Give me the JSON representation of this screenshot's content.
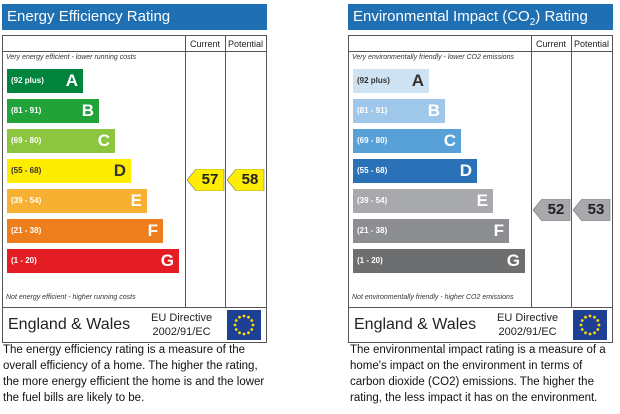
{
  "energy": {
    "title": "Energy Efficiency Rating",
    "col_current": "Current",
    "col_potential": "Potential",
    "top_note": "Very energy efficient - lower running costs",
    "bottom_note": "Not energy efficient - higher running costs",
    "bands": [
      {
        "range": "(92 plus)",
        "letter": "A",
        "color": "#00833c",
        "text": "#ffffff"
      },
      {
        "range": "(81 - 91)",
        "letter": "B",
        "color": "#22a33a",
        "text": "#ffffff"
      },
      {
        "range": "(69 - 80)",
        "letter": "C",
        "color": "#8cc63f",
        "text": "#ffffff"
      },
      {
        "range": "(55 - 68)",
        "letter": "D",
        "color": "#ffed00",
        "text": "#333333"
      },
      {
        "range": "(39 - 54)",
        "letter": "E",
        "color": "#f7b032",
        "text": "#ffffff"
      },
      {
        "range": "(21 - 38)",
        "letter": "F",
        "color": "#ee7d1c",
        "text": "#ffffff"
      },
      {
        "range": "(1 - 20)",
        "letter": "G",
        "color": "#e31d23",
        "text": "#ffffff"
      }
    ],
    "current": "57",
    "potential": "58",
    "arrow_color": "#ffed00",
    "region": "England & Wales",
    "directive_line1": "EU Directive",
    "directive_line2": "2002/91/EC",
    "description": "The energy efficiency rating is a measure of the overall efficiency of a home. The higher the rating, the more energy efficient the home is and the lower the fuel bills are likely to be."
  },
  "environment": {
    "title_prefix": "Environmental Impact (CO",
    "title_sub": "2",
    "title_suffix": ") Rating",
    "col_current": "Current",
    "col_potential": "Potential",
    "top_note": "Very environmentally friendly - lower CO2 emissions",
    "bottom_note": "Not environmentally friendly - higher CO2 emissions",
    "bands": [
      {
        "range": "(92 plus)",
        "letter": "A",
        "color": "#cde2f3",
        "text": "#333333"
      },
      {
        "range": "(81 - 91)",
        "letter": "B",
        "color": "#9fc7ea",
        "text": "#ffffff"
      },
      {
        "range": "(69 - 80)",
        "letter": "C",
        "color": "#58a0d8",
        "text": "#ffffff"
      },
      {
        "range": "(55 - 68)",
        "letter": "D",
        "color": "#2a71b8",
        "text": "#ffffff"
      },
      {
        "range": "(39 - 54)",
        "letter": "E",
        "color": "#a7a9ac",
        "text": "#ffffff"
      },
      {
        "range": "(21 - 38)",
        "letter": "F",
        "color": "#8c8e91",
        "text": "#ffffff"
      },
      {
        "range": "(1 - 20)",
        "letter": "G",
        "color": "#6d6e70",
        "text": "#ffffff"
      }
    ],
    "current": "52",
    "potential": "53",
    "arrow_color": "#a7a9ac",
    "region": "England & Wales",
    "directive_line1": "EU Directive",
    "directive_line2": "2002/91/EC",
    "description": "The environmental impact rating is a measure of a home's impact on the environment in terms of carbon dioxide (CO2) emissions. The higher the rating, the less impact it has on the environment."
  }
}
